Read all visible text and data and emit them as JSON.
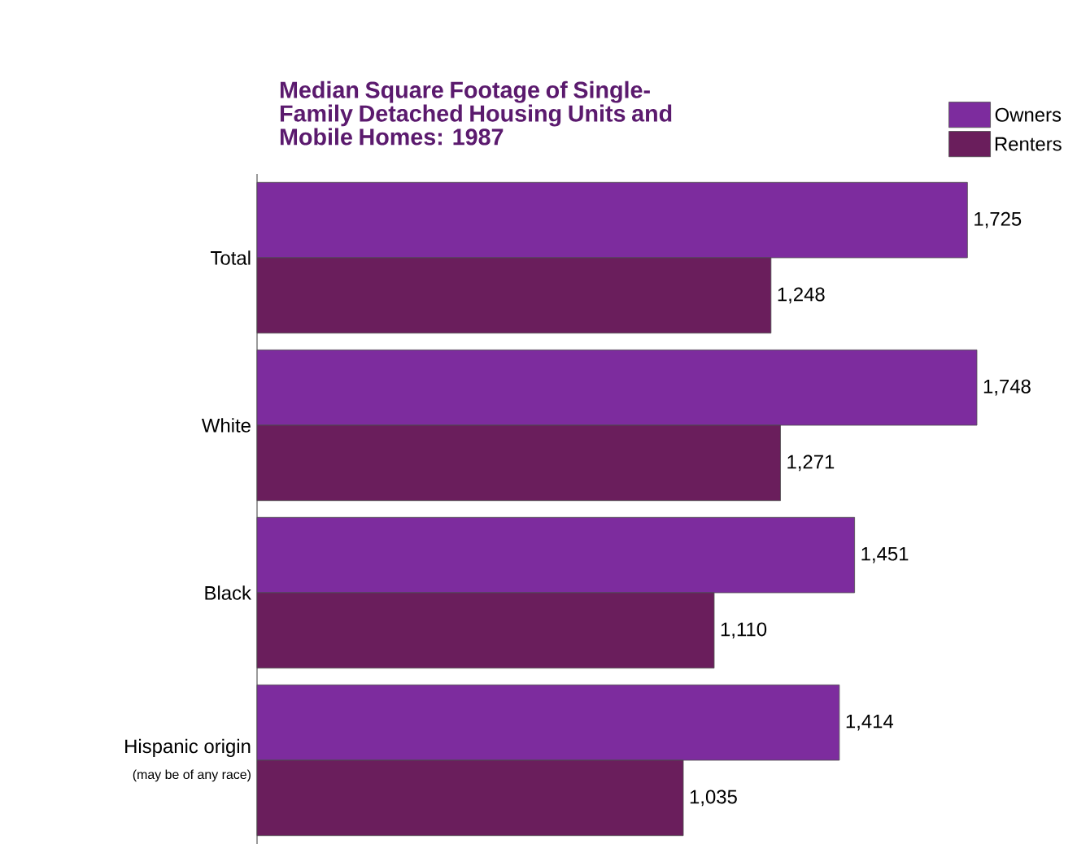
{
  "chart_data": {
    "type": "bar",
    "orientation": "horizontal",
    "title": "Median Square Footage of Single-Family Detached Housing Units and Mobile Homes:  1987",
    "categories": [
      "Total",
      "White",
      "Black",
      "Hispanic origin"
    ],
    "annotations": [
      "(may be of any race)"
    ],
    "series": [
      {
        "name": "Owners",
        "color": "#7d2c9e",
        "values": [
          1725,
          1748,
          1451,
          1414
        ],
        "value_labels": [
          "1,725",
          "1,748",
          "1,451",
          "1,414"
        ]
      },
      {
        "name": "Renters",
        "color": "#6a1e5c",
        "values": [
          1248,
          1271,
          1110,
          1035
        ],
        "value_labels": [
          "1,248",
          "1,271",
          "1,110",
          "1,035"
        ]
      }
    ],
    "legend": "top right"
  }
}
